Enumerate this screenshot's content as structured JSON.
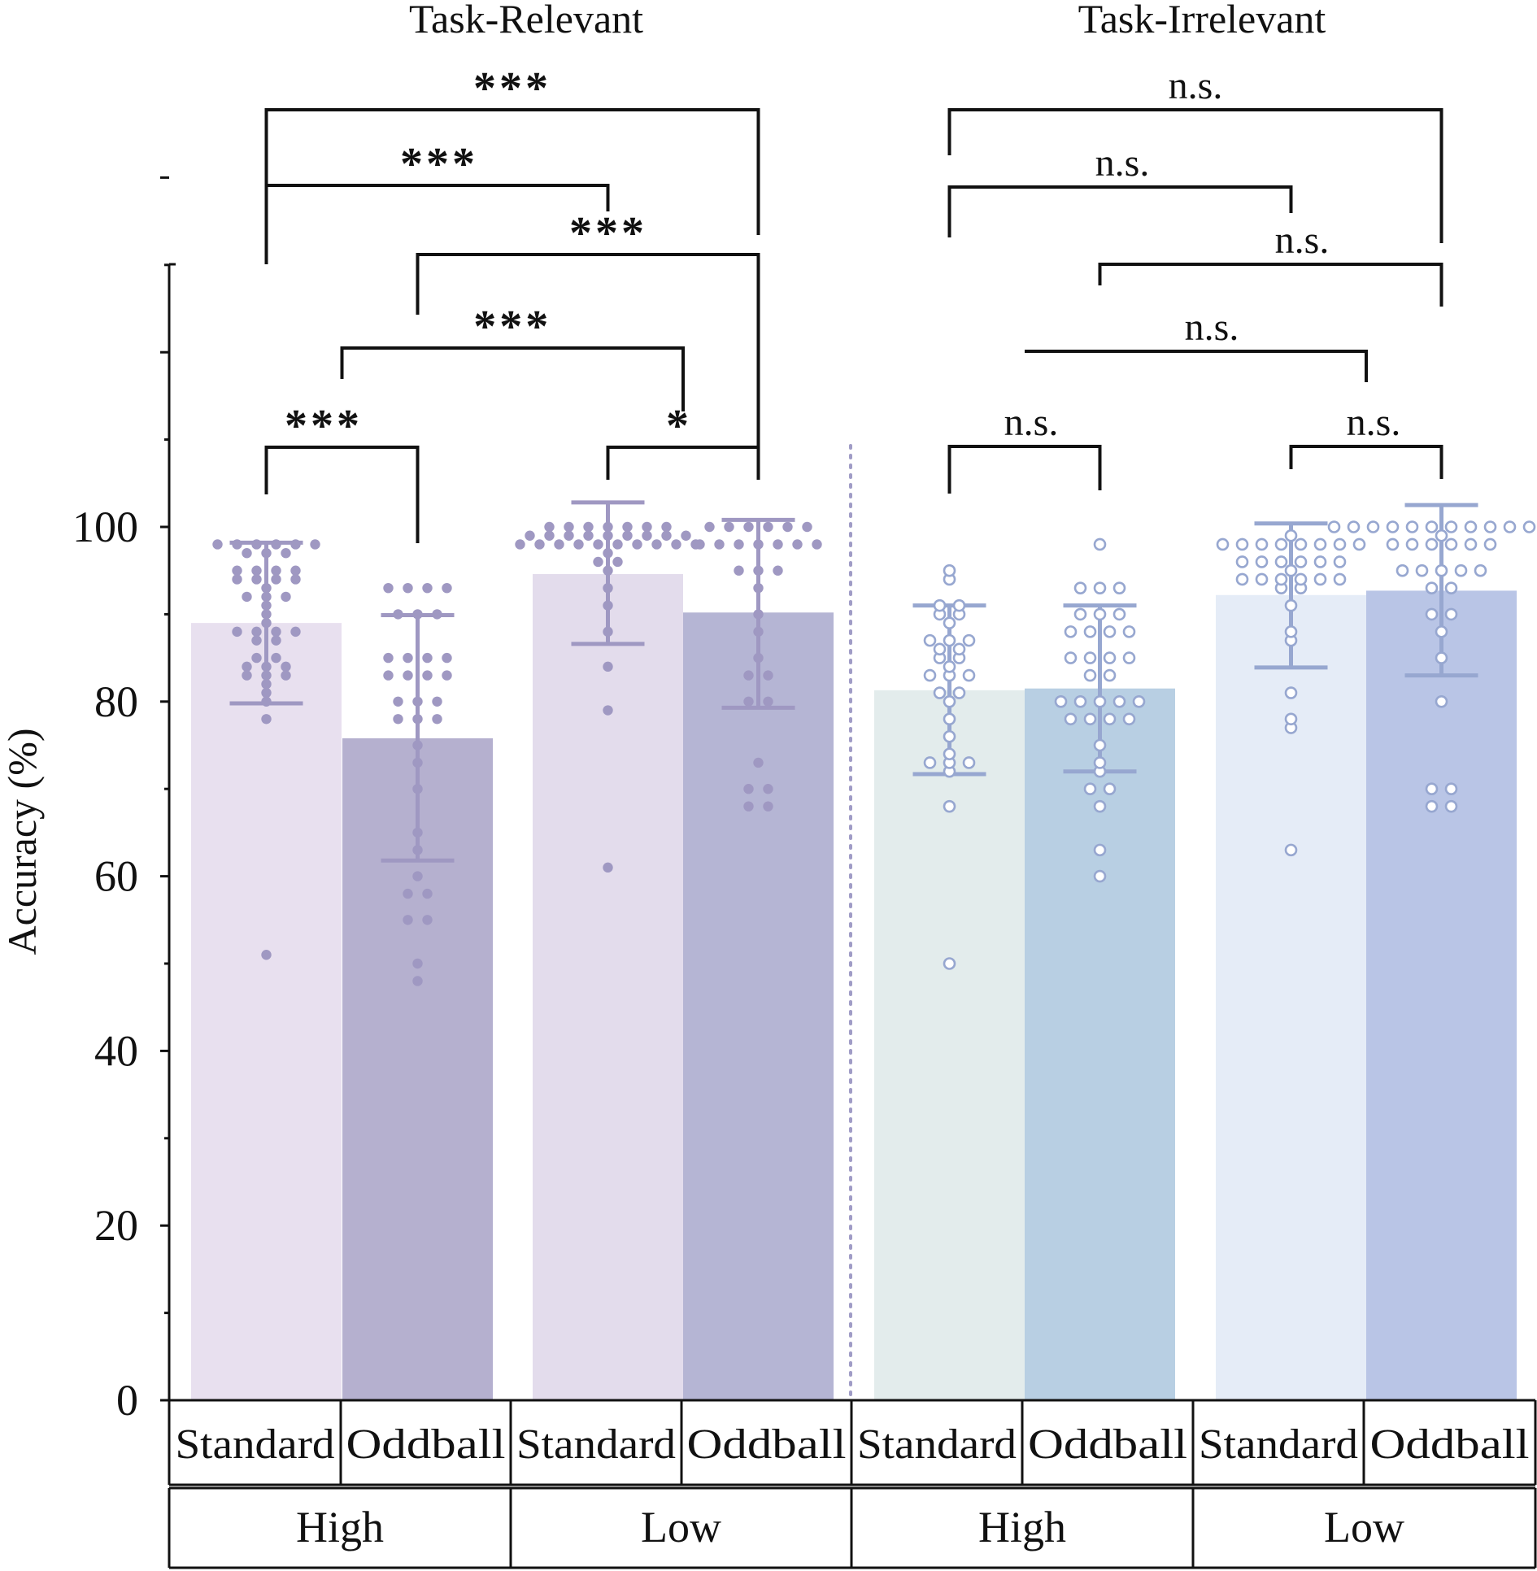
{
  "chart_data": {
    "type": "bar",
    "ylabel": "Accuracy (%)",
    "ylim": [
      0,
      100
    ],
    "yticks": [
      "0",
      "20",
      "40",
      "60",
      "80",
      "100"
    ],
    "panels": [
      "Task-Relevant",
      "Task-Irrelevant"
    ],
    "groups": [
      "High",
      "Low",
      "High",
      "Low"
    ],
    "conditions": [
      "Standard",
      "Oddball",
      "Standard",
      "Oddball",
      "Standard",
      "Oddball",
      "Standard",
      "Oddball"
    ],
    "bars": [
      {
        "panel": "Task-Relevant",
        "group": "High",
        "condition": "Standard",
        "mean": 89,
        "sd_low": 79.8,
        "sd_high": 98.2,
        "color": "#e8e0ef",
        "fill_marker": true,
        "points": [
          98,
          98,
          98,
          98,
          98,
          98,
          97,
          97,
          97,
          95,
          95,
          95,
          95,
          94,
          94,
          94,
          94,
          93,
          92,
          92,
          92,
          91,
          90,
          89,
          88,
          88,
          88,
          88,
          87,
          87,
          85,
          85,
          84,
          84,
          84,
          83,
          83,
          83,
          82,
          81,
          80,
          78,
          51
        ]
      },
      {
        "panel": "Task-Relevant",
        "group": "High",
        "condition": "Oddball",
        "mean": 75.8,
        "sd_low": 61.8,
        "sd_high": 89.9,
        "color": "#b5b0cf",
        "fill_marker": true,
        "points": [
          93,
          93,
          93,
          93,
          90,
          90,
          90,
          85,
          85,
          85,
          85,
          83,
          83,
          83,
          83,
          80,
          80,
          80,
          78,
          78,
          78,
          75,
          73,
          70,
          65,
          63,
          60,
          58,
          58,
          55,
          55,
          50,
          48
        ]
      },
      {
        "panel": "Task-Relevant",
        "group": "Low",
        "condition": "Standard",
        "mean": 94.6,
        "sd_low": 86.6,
        "sd_high": 102.8,
        "color": "#e3dcec",
        "fill_marker": true,
        "points": [
          100,
          100,
          100,
          100,
          100,
          100,
          100,
          99,
          99,
          99,
          99,
          99,
          99,
          99,
          99,
          99,
          98,
          98,
          98,
          98,
          98,
          98,
          98,
          98,
          98,
          98,
          97,
          96,
          96,
          95,
          93,
          91,
          88,
          84,
          79,
          61
        ]
      },
      {
        "panel": "Task-Relevant",
        "group": "Low",
        "condition": "Oddball",
        "mean": 90.2,
        "sd_low": 79.3,
        "sd_high": 100.8,
        "color": "#b5b5d4",
        "fill_marker": true,
        "points": [
          100,
          100,
          100,
          100,
          100,
          100,
          98,
          98,
          98,
          98,
          98,
          98,
          98,
          95,
          95,
          95,
          93,
          90,
          88,
          85,
          83,
          83,
          80,
          80,
          73,
          70,
          70,
          68,
          68
        ]
      },
      {
        "panel": "Task-Irrelevant",
        "group": "High",
        "condition": "Standard",
        "mean": 81.3,
        "sd_low": 71.7,
        "sd_high": 91.0,
        "color": "#e3ecec",
        "fill_marker": false,
        "points": [
          95,
          94,
          91,
          91,
          90,
          90,
          89,
          87,
          87,
          87,
          86,
          86,
          85,
          85,
          84,
          83,
          83,
          83,
          81,
          81,
          80,
          78,
          76,
          74,
          73,
          73,
          73,
          72,
          68,
          50
        ]
      },
      {
        "panel": "Task-Irrelevant",
        "group": "High",
        "condition": "Oddball",
        "mean": 81.5,
        "sd_low": 72.0,
        "sd_high": 91.0,
        "color": "#b8cfe3",
        "fill_marker": false,
        "points": [
          98,
          93,
          93,
          93,
          90,
          90,
          90,
          88,
          88,
          88,
          88,
          85,
          85,
          85,
          85,
          83,
          83,
          80,
          80,
          80,
          80,
          80,
          78,
          78,
          78,
          78,
          75,
          73,
          72,
          70,
          70,
          68,
          63,
          60
        ]
      },
      {
        "panel": "Task-Irrelevant",
        "group": "Low",
        "condition": "Standard",
        "mean": 92.2,
        "sd_low": 83.9,
        "sd_high": 100.4,
        "color": "#e5ecf7",
        "fill_marker": false,
        "points": [
          99,
          98,
          98,
          98,
          98,
          98,
          98,
          98,
          98,
          96,
          96,
          96,
          96,
          96,
          96,
          95,
          94,
          94,
          94,
          94,
          94,
          94,
          93,
          93,
          91,
          88,
          87,
          81,
          78,
          77,
          63
        ]
      },
      {
        "panel": "Task-Irrelevant",
        "group": "Low",
        "condition": "Oddball",
        "mean": 92.7,
        "sd_low": 83.0,
        "sd_high": 102.5,
        "color": "#b9c5e6",
        "fill_marker": false,
        "points": [
          100,
          100,
          100,
          100,
          100,
          100,
          100,
          100,
          100,
          100,
          100,
          100,
          99,
          98,
          98,
          98,
          98,
          98,
          98,
          95,
          95,
          95,
          95,
          95,
          93,
          93,
          90,
          90,
          88,
          85,
          80,
          70,
          70,
          68,
          68
        ]
      }
    ],
    "significance": [
      {
        "panel": "Task-Relevant",
        "from": 0,
        "to": 3,
        "label": "***"
      },
      {
        "panel": "Task-Relevant",
        "from": 0,
        "to": 2,
        "label": "***"
      },
      {
        "panel": "Task-Relevant",
        "from": 1,
        "to": 3,
        "label": "***"
      },
      {
        "panel": "Task-Relevant",
        "from": 0.5,
        "to": 2.5,
        "label": "***"
      },
      {
        "panel": "Task-Relevant",
        "from": 0,
        "to": 1,
        "label": "***"
      },
      {
        "panel": "Task-Relevant",
        "from": 2,
        "to": 3,
        "label": "*"
      },
      {
        "panel": "Task-Irrelevant",
        "from": 4,
        "to": 7,
        "label": "n.s."
      },
      {
        "panel": "Task-Irrelevant",
        "from": 4,
        "to": 6,
        "label": "n.s."
      },
      {
        "panel": "Task-Irrelevant",
        "from": 5,
        "to": 7,
        "label": "n.s."
      },
      {
        "panel": "Task-Irrelevant",
        "from": 4.5,
        "to": 6.5,
        "label": "n.s."
      },
      {
        "panel": "Task-Irrelevant",
        "from": 4,
        "to": 5,
        "label": "n.s."
      },
      {
        "panel": "Task-Irrelevant",
        "from": 6,
        "to": 7,
        "label": "n.s."
      }
    ],
    "colors": {
      "axis": "#111111",
      "errorbar_relevant": "#9f98c2",
      "errorbar_irrelevant": "#97a7d0",
      "divider": "#a09cc6"
    }
  }
}
